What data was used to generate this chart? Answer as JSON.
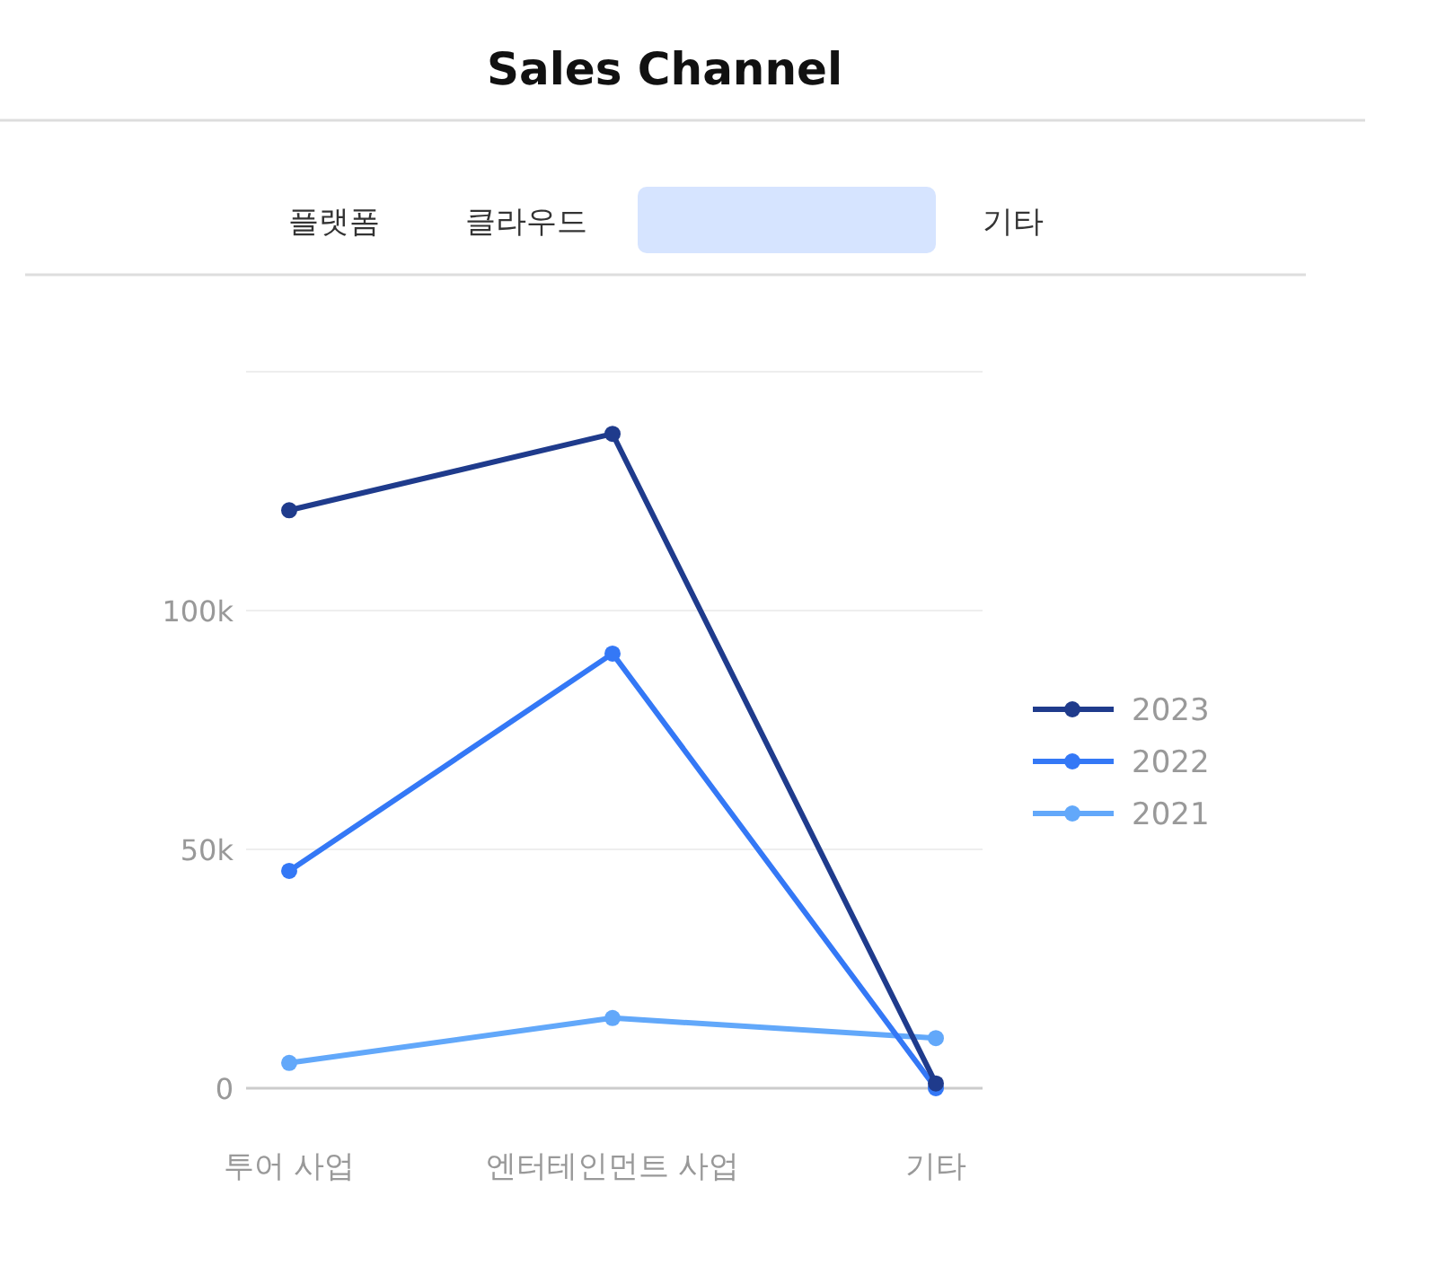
{
  "chart_data": {
    "type": "line",
    "title": "Sales Channel",
    "annotations": [
      "플랫폼",
      "클라우드",
      "기타"
    ],
    "categories": [
      "투어 사업",
      "엔터테인먼트 사업",
      "기타"
    ],
    "series": [
      {
        "name": "2023",
        "color": "#1f3b8c",
        "values": [
          121000,
          137000,
          1000
        ]
      },
      {
        "name": "2022",
        "color": "#3478f6",
        "values": [
          45500,
          91000,
          0
        ]
      },
      {
        "name": "2021",
        "color": "#62a8fa",
        "values": [
          5300,
          14700,
          10500
        ]
      }
    ],
    "ylim": [
      0,
      150000
    ],
    "yticks": [
      {
        "value": 0,
        "label": "0"
      },
      {
        "value": 50000,
        "label": "50k"
      },
      {
        "value": 100000,
        "label": "100k"
      },
      {
        "value": 150000,
        "label": null
      }
    ],
    "grid": "y",
    "legend": "right",
    "marker": "circle",
    "line_style": "solid"
  }
}
